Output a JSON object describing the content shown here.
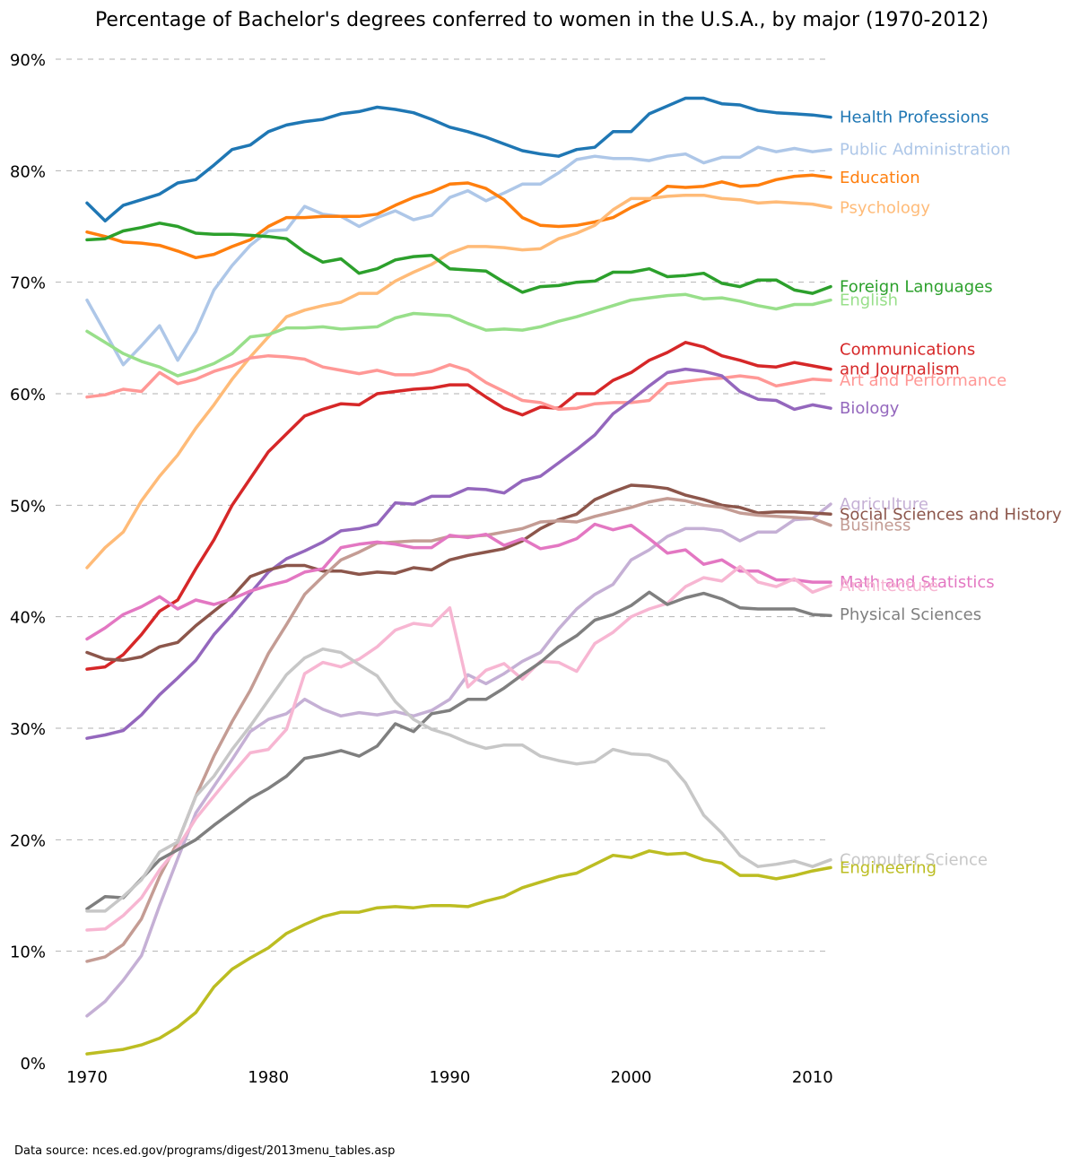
{
  "chart_data": {
    "type": "line",
    "title": "Percentage of Bachelor's degrees conferred to women in the U.S.A., by major (1970-2012)",
    "source": "Data source: nces.ed.gov/programs/digest/2013menu_tables.asp",
    "xlabel": "",
    "ylabel": "",
    "xlim": [
      1970,
      2011
    ],
    "ylim": [
      0,
      90
    ],
    "grid": true,
    "legend": "direct labels at right end of lines",
    "x_ticks": [
      1970,
      1980,
      1990,
      2000,
      2010
    ],
    "x_tick_labels": [
      "1970",
      "1980",
      "1990",
      "2000",
      "2010"
    ],
    "y_ticks": [
      0,
      10,
      20,
      30,
      40,
      50,
      60,
      70,
      80,
      90
    ],
    "y_tick_labels": [
      "0%",
      "10%",
      "20%",
      "30%",
      "40%",
      "50%",
      "60%",
      "70%",
      "80%",
      "90%"
    ],
    "x": [
      1970,
      1971,
      1972,
      1973,
      1974,
      1975,
      1976,
      1977,
      1978,
      1979,
      1980,
      1981,
      1982,
      1983,
      1984,
      1985,
      1986,
      1987,
      1988,
      1989,
      1990,
      1991,
      1992,
      1993,
      1994,
      1995,
      1996,
      1997,
      1998,
      1999,
      2000,
      2001,
      2002,
      2003,
      2004,
      2005,
      2006,
      2007,
      2008,
      2009,
      2010,
      2011
    ],
    "series": [
      {
        "name": "Health Professions",
        "label_lines": [
          "Health Professions"
        ],
        "color": "#1f77b4",
        "label_value": 84.8,
        "values": [
          77.1,
          75.5,
          76.9,
          77.4,
          77.9,
          78.9,
          79.2,
          80.5,
          81.9,
          82.3,
          83.5,
          84.1,
          84.4,
          84.6,
          85.1,
          85.3,
          85.7,
          85.5,
          85.2,
          84.6,
          83.9,
          83.5,
          83.0,
          82.4,
          81.8,
          81.5,
          81.3,
          81.9,
          82.1,
          83.5,
          83.5,
          85.1,
          85.8,
          86.5,
          86.5,
          86.0,
          85.9,
          85.4,
          85.2,
          85.1,
          85.0,
          84.8
        ]
      },
      {
        "name": "Public Administration",
        "label_lines": [
          "Public Administration"
        ],
        "color": "#aec7e8",
        "label_value": 81.9,
        "values": [
          68.4,
          65.5,
          62.6,
          64.3,
          66.1,
          63.0,
          65.6,
          69.3,
          71.5,
          73.3,
          74.6,
          74.7,
          76.8,
          76.1,
          75.9,
          75.0,
          75.8,
          76.4,
          75.6,
          76.0,
          77.6,
          78.2,
          77.3,
          78.0,
          78.8,
          78.8,
          79.8,
          81.0,
          81.3,
          81.1,
          81.1,
          80.9,
          81.3,
          81.5,
          80.7,
          81.2,
          81.2,
          82.1,
          81.7,
          82.0,
          81.7,
          81.9
        ]
      },
      {
        "name": "Education",
        "label_lines": [
          "Education"
        ],
        "color": "#ff7f0e",
        "label_value": 79.4,
        "values": [
          74.5,
          74.1,
          73.6,
          73.5,
          73.3,
          72.8,
          72.2,
          72.5,
          73.2,
          73.8,
          75.0,
          75.8,
          75.8,
          75.9,
          75.9,
          75.9,
          76.1,
          76.9,
          77.6,
          78.1,
          78.8,
          78.9,
          78.4,
          77.4,
          75.8,
          75.1,
          75.0,
          75.1,
          75.4,
          75.8,
          76.7,
          77.4,
          78.6,
          78.5,
          78.6,
          79.0,
          78.6,
          78.7,
          79.2,
          79.5,
          79.6,
          79.4
        ]
      },
      {
        "name": "Psychology",
        "label_lines": [
          "Psychology"
        ],
        "color": "#ffbb78",
        "label_value": 76.7,
        "values": [
          44.4,
          46.2,
          47.6,
          50.4,
          52.6,
          54.5,
          56.9,
          59.0,
          61.3,
          63.3,
          65.1,
          66.9,
          67.5,
          67.9,
          68.2,
          69.0,
          69.0,
          70.1,
          70.9,
          71.6,
          72.6,
          73.2,
          73.2,
          73.1,
          72.9,
          73.0,
          73.9,
          74.4,
          75.1,
          76.5,
          77.5,
          77.5,
          77.7,
          77.8,
          77.8,
          77.5,
          77.4,
          77.1,
          77.2,
          77.1,
          77.0,
          76.7
        ]
      },
      {
        "name": "Foreign Languages",
        "label_lines": [
          "Foreign Languages"
        ],
        "color": "#2ca02c",
        "label_value": 69.6,
        "values": [
          73.8,
          73.9,
          74.6,
          74.9,
          75.3,
          75.0,
          74.4,
          74.3,
          74.3,
          74.2,
          74.1,
          73.9,
          72.7,
          71.8,
          72.1,
          70.8,
          71.2,
          72.0,
          72.3,
          72.4,
          71.2,
          71.1,
          71.0,
          70.0,
          69.1,
          69.6,
          69.7,
          70.0,
          70.1,
          70.9,
          70.9,
          71.2,
          70.5,
          70.6,
          70.8,
          69.9,
          69.6,
          70.2,
          70.2,
          69.3,
          69.0,
          69.6
        ]
      },
      {
        "name": "English",
        "label_lines": [
          "English"
        ],
        "color": "#98df8a",
        "label_value": 68.4,
        "values": [
          65.6,
          64.6,
          63.6,
          62.9,
          62.4,
          61.6,
          62.1,
          62.7,
          63.6,
          65.1,
          65.3,
          65.9,
          65.9,
          66.0,
          65.8,
          65.9,
          66.0,
          66.8,
          67.2,
          67.1,
          67.0,
          66.3,
          65.7,
          65.8,
          65.7,
          66.0,
          66.5,
          66.9,
          67.4,
          67.9,
          68.4,
          68.6,
          68.8,
          68.9,
          68.5,
          68.6,
          68.3,
          67.9,
          67.6,
          68.0,
          68.0,
          68.4
        ]
      },
      {
        "name": "Communications and Journalism",
        "label_lines": [
          "Communications",
          "and Journalism"
        ],
        "color": "#d62728",
        "label_value": 62.2,
        "values": [
          35.3,
          35.5,
          36.6,
          38.4,
          40.5,
          41.5,
          44.3,
          46.9,
          50.0,
          52.4,
          54.8,
          56.4,
          58.0,
          58.6,
          59.1,
          59.0,
          60.0,
          60.2,
          60.4,
          60.5,
          60.8,
          60.8,
          59.7,
          58.7,
          58.1,
          58.8,
          58.7,
          60.0,
          60.0,
          61.2,
          61.9,
          63.0,
          63.7,
          64.6,
          64.2,
          63.4,
          63.0,
          62.5,
          62.4,
          62.8,
          62.5,
          62.2
        ]
      },
      {
        "name": "Art and Performance",
        "label_lines": [
          "Art and Performance"
        ],
        "color": "#ff9896",
        "label_value": 61.2,
        "values": [
          59.7,
          59.9,
          60.4,
          60.2,
          61.9,
          60.9,
          61.3,
          62.0,
          62.5,
          63.2,
          63.4,
          63.3,
          63.1,
          62.4,
          62.1,
          61.8,
          62.1,
          61.7,
          61.7,
          62.0,
          62.6,
          62.1,
          61.0,
          60.2,
          59.4,
          59.2,
          58.6,
          58.7,
          59.1,
          59.2,
          59.2,
          59.4,
          60.9,
          61.1,
          61.3,
          61.4,
          61.6,
          61.4,
          60.7,
          61.0,
          61.3,
          61.2
        ]
      },
      {
        "name": "Biology",
        "label_lines": [
          "Biology"
        ],
        "color": "#9467bd",
        "label_value": 58.7,
        "values": [
          29.1,
          29.4,
          29.8,
          31.2,
          33.0,
          34.5,
          36.1,
          38.4,
          40.2,
          42.1,
          44.0,
          45.2,
          45.9,
          46.7,
          47.7,
          47.9,
          48.3,
          50.2,
          50.1,
          50.8,
          50.8,
          51.5,
          51.4,
          51.1,
          52.2,
          52.6,
          53.8,
          55.0,
          56.3,
          58.2,
          59.4,
          60.7,
          61.9,
          62.2,
          62.0,
          61.6,
          60.2,
          59.5,
          59.4,
          58.6,
          59.0,
          58.7
        ]
      },
      {
        "name": "Agriculture",
        "label_lines": [
          "Agriculture"
        ],
        "color": "#c5b0d5",
        "label_value": 50.1,
        "values": [
          4.2,
          5.5,
          7.4,
          9.6,
          14.1,
          18.3,
          22.4,
          24.8,
          27.2,
          29.7,
          30.8,
          31.3,
          32.6,
          31.7,
          31.1,
          31.4,
          31.2,
          31.5,
          31.1,
          31.6,
          32.6,
          34.8,
          34.0,
          34.9,
          36.0,
          36.8,
          38.9,
          40.7,
          42.0,
          42.9,
          45.1,
          46.0,
          47.2,
          47.9,
          47.9,
          47.7,
          46.8,
          47.6,
          47.6,
          48.7,
          48.8,
          50.1
        ]
      },
      {
        "name": "Social Sciences and History",
        "label_lines": [
          "Social Sciences and History"
        ],
        "color": "#8c564b",
        "label_value": 49.2,
        "values": [
          36.8,
          36.2,
          36.1,
          36.4,
          37.3,
          37.7,
          39.2,
          40.5,
          41.8,
          43.6,
          44.2,
          44.6,
          44.6,
          44.1,
          44.1,
          43.8,
          44.0,
          43.9,
          44.4,
          44.2,
          45.1,
          45.5,
          45.8,
          46.1,
          46.8,
          47.9,
          48.7,
          49.2,
          50.5,
          51.2,
          51.8,
          51.7,
          51.5,
          50.9,
          50.5,
          50.0,
          49.8,
          49.3,
          49.4,
          49.4,
          49.3,
          49.2
        ]
      },
      {
        "name": "Business",
        "label_lines": [
          "Business"
        ],
        "color": "#c49c94",
        "label_value": 48.2,
        "values": [
          9.1,
          9.5,
          10.6,
          12.9,
          16.7,
          19.8,
          23.9,
          27.5,
          30.6,
          33.4,
          36.7,
          39.3,
          42.0,
          43.6,
          45.1,
          45.8,
          46.6,
          46.7,
          46.8,
          46.8,
          47.2,
          47.2,
          47.3,
          47.6,
          47.9,
          48.5,
          48.6,
          48.5,
          49.0,
          49.4,
          49.8,
          50.3,
          50.6,
          50.4,
          50.0,
          49.8,
          49.3,
          49.1,
          49.0,
          48.9,
          48.8,
          48.2
        ]
      },
      {
        "name": "Math and Statistics",
        "label_lines": [
          "Math and Statistics"
        ],
        "color": "#e377c2",
        "label_value": 43.1,
        "values": [
          38.0,
          39.0,
          40.2,
          40.9,
          41.8,
          40.7,
          41.5,
          41.1,
          41.6,
          42.3,
          42.8,
          43.2,
          44.0,
          44.3,
          46.2,
          46.5,
          46.7,
          46.5,
          46.2,
          46.2,
          47.3,
          47.1,
          47.4,
          46.4,
          47.0,
          46.1,
          46.4,
          47.0,
          48.3,
          47.8,
          48.2,
          47.0,
          45.7,
          46.0,
          44.7,
          45.1,
          44.1,
          44.1,
          43.3,
          43.3,
          43.1,
          43.1
        ]
      },
      {
        "name": "Architecture",
        "label_lines": [
          "Architecture"
        ],
        "color": "#f7b6d2",
        "label_value": 42.8,
        "values": [
          11.9,
          12.0,
          13.2,
          14.8,
          17.3,
          19.3,
          21.9,
          23.9,
          25.9,
          27.8,
          28.1,
          29.9,
          34.9,
          35.9,
          35.5,
          36.2,
          37.3,
          38.8,
          39.4,
          39.2,
          40.8,
          33.7,
          35.2,
          35.8,
          34.4,
          36.0,
          35.9,
          35.1,
          37.6,
          38.6,
          40.0,
          40.7,
          41.2,
          42.7,
          43.5,
          43.2,
          44.5,
          43.1,
          42.7,
          43.4,
          42.2,
          42.8
        ]
      },
      {
        "name": "Physical Sciences",
        "label_lines": [
          "Physical Sciences"
        ],
        "color": "#7f7f7f",
        "label_value": 40.2,
        "values": [
          13.8,
          14.9,
          14.8,
          16.5,
          18.2,
          19.1,
          20.0,
          21.3,
          22.5,
          23.7,
          24.6,
          25.7,
          27.3,
          27.6,
          28.0,
          27.5,
          28.4,
          30.4,
          29.7,
          31.3,
          31.6,
          32.6,
          32.6,
          33.6,
          34.8,
          35.9,
          37.3,
          38.3,
          39.7,
          40.2,
          41.0,
          42.2,
          41.1,
          41.7,
          42.1,
          41.6,
          40.8,
          40.7,
          40.7,
          40.7,
          40.2,
          40.1
        ]
      },
      {
        "name": "Computer Science",
        "label_lines": [
          "Computer Science"
        ],
        "color": "#c7c7c7",
        "label_value": 18.2,
        "values": [
          13.6,
          13.6,
          14.9,
          16.4,
          18.9,
          19.8,
          23.9,
          25.7,
          28.1,
          30.2,
          32.5,
          34.8,
          36.3,
          37.1,
          36.8,
          35.7,
          34.7,
          32.4,
          30.8,
          29.9,
          29.4,
          28.7,
          28.2,
          28.5,
          28.5,
          27.5,
          27.1,
          26.8,
          27.0,
          28.1,
          27.7,
          27.6,
          27.0,
          25.1,
          22.2,
          20.6,
          18.6,
          17.6,
          17.8,
          18.1,
          17.6,
          18.2
        ]
      },
      {
        "name": "Engineering",
        "label_lines": [
          "Engineering"
        ],
        "color": "#bcbd22",
        "label_value": 17.5,
        "values": [
          0.8,
          1.0,
          1.2,
          1.6,
          2.2,
          3.2,
          4.5,
          6.8,
          8.4,
          9.4,
          10.3,
          11.6,
          12.4,
          13.1,
          13.5,
          13.5,
          13.9,
          14.0,
          13.9,
          14.1,
          14.1,
          14.0,
          14.5,
          14.9,
          15.7,
          16.2,
          16.7,
          17.0,
          17.8,
          18.6,
          18.4,
          19.0,
          18.7,
          18.8,
          18.2,
          17.9,
          16.8,
          16.8,
          16.5,
          16.8,
          17.2,
          17.5
        ]
      }
    ]
  }
}
